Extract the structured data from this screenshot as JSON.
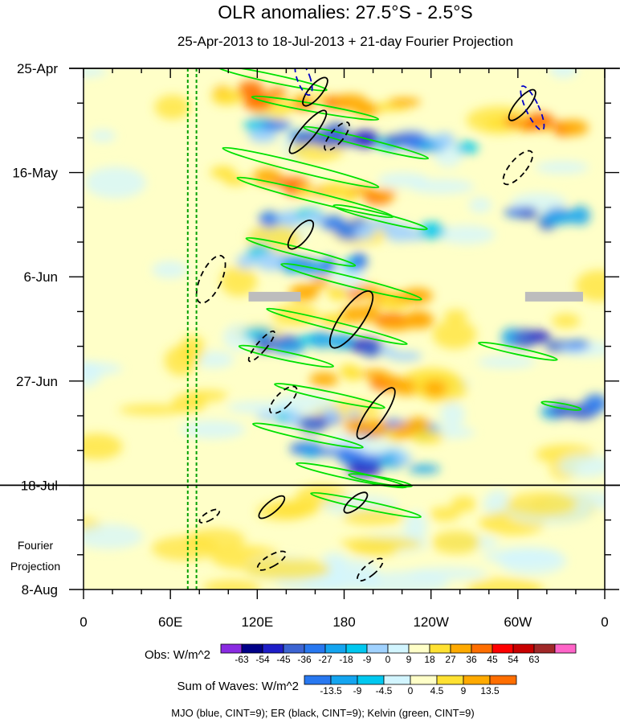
{
  "chart_data": {
    "type": "heatmap",
    "title": "OLR anomalies: 27.5°S - 2.5°S",
    "subtitle": "25-Apr-2013 to 18-Jul-2013 + 21-day Fourier Projection",
    "x_ticks": [
      "0",
      "60E",
      "120E",
      "180",
      "120W",
      "60W",
      "0"
    ],
    "x_tick_longitudes": [
      0,
      60,
      120,
      180,
      240,
      300,
      360
    ],
    "y_ticks": [
      "25-Apr",
      "16-May",
      "6-Jun",
      "27-Jun",
      "18-Jul",
      "8-Aug"
    ],
    "y_tick_dates": [
      "2013-04-25",
      "2013-05-16",
      "2013-06-06",
      "2013-06-27",
      "2013-07-18",
      "2013-08-08"
    ],
    "xlim": [
      0,
      360
    ],
    "ylim": [
      "2013-04-25",
      "2013-08-08"
    ],
    "projection_start": "2013-07-18",
    "projection_label_line1": "Fourier",
    "projection_label_line2": "Projection",
    "obs_colorbar": {
      "label": "Obs: W/m^2",
      "levels": [
        -63,
        -54,
        -45,
        -36,
        -27,
        -18,
        -9,
        0,
        9,
        18,
        27,
        36,
        45,
        54,
        63
      ],
      "colors": [
        "#8a2be2",
        "#000088",
        "#1e1ec8",
        "#3c64d2",
        "#2878f0",
        "#14a5f0",
        "#00c8f0",
        "#a0d2ff",
        "#d2f5ff",
        "#ffffc8",
        "#ffe132",
        "#ffaa00",
        "#ff6e00",
        "#ff0000",
        "#c80000",
        "#a02828",
        "#ff64c8"
      ]
    },
    "waves_colorbar": {
      "label": "Sum of Waves: W/m^2",
      "levels": [
        -13.5,
        -9,
        -4.5,
        0,
        4.5,
        9,
        13.5
      ],
      "colors": [
        "#2878f0",
        "#14a5f0",
        "#00c8f0",
        "#d2f5ff",
        "#ffffc8",
        "#ffe132",
        "#ffaa00",
        "#ff6e00"
      ]
    },
    "footnote": "MJO (blue, CINT=9); ER (black, CINT=9); Kelvin (green, CINT=9)",
    "series": [
      {
        "name": "MJO",
        "color": "#0000c8"
      },
      {
        "name": "ER",
        "color": "#000000"
      },
      {
        "name": "Kelvin",
        "color": "#00e100"
      }
    ],
    "reference_longitudes": [
      72,
      78
    ],
    "missing_data": [
      {
        "lon": [
          114,
          150
        ],
        "date": "2013-06-10"
      },
      {
        "lon": [
          305,
          345
        ],
        "date": "2013-06-10"
      }
    ]
  }
}
